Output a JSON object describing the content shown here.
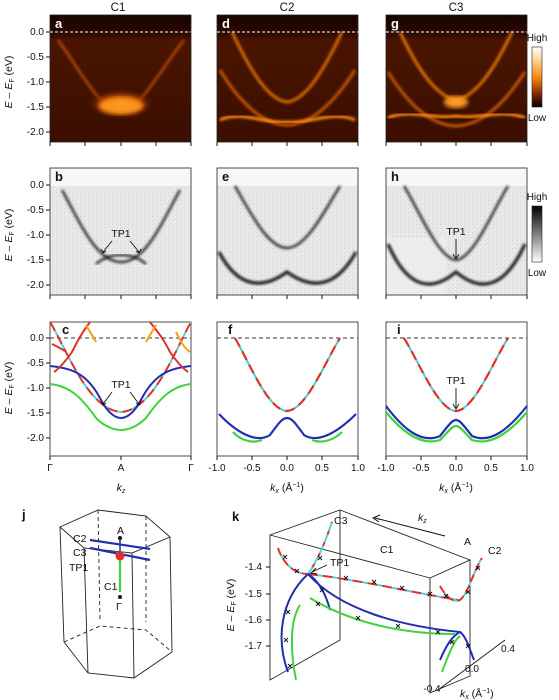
{
  "columns": [
    "C1",
    "C2",
    "C3"
  ],
  "panel_letters": [
    "a",
    "d",
    "g",
    "b",
    "e",
    "h",
    "c",
    "f",
    "i",
    "j",
    "k"
  ],
  "colorbar": {
    "high": "High",
    "low": "Low"
  },
  "axis": {
    "energy_label": "E – E",
    "energy_sub": "F",
    "energy_unit": " (eV)",
    "y_ticks": [
      "0.0",
      "-0.5",
      "-1.0",
      "-1.5",
      "-2.0"
    ],
    "kz_ticks": [
      "Γ",
      "A",
      "Γ"
    ],
    "kz_label": "k",
    "kz_sub": "z",
    "kx_ticks": [
      "-1.0",
      "-0.5",
      "0.0",
      "0.5",
      "1.0"
    ],
    "kx_label": "k",
    "kx_sub": "x",
    "kx_unit": " (Å",
    "kx_unit_sup": "−1",
    "kx_unit_close": ")"
  },
  "annotations": {
    "tp1": "TP1"
  },
  "panel_j": {
    "labels": [
      "C2",
      "C3",
      "TP1",
      "A",
      "C1",
      "Γ"
    ]
  },
  "panel_k": {
    "labels": [
      "C3",
      "TP1",
      "C1",
      "C2",
      "A"
    ],
    "kz_label": "k",
    "kz_sub": "z",
    "z_ticks": [
      "-1.4",
      "-1.5",
      "-1.6",
      "-1.7"
    ],
    "x_ticks": [
      "-0.4",
      "0.0",
      "0.4"
    ],
    "energy_label": "E – E",
    "energy_sub": "F",
    "energy_unit": " (eV)",
    "kx_label": "k",
    "kx_sub": "x",
    "kx_unit": " (Å",
    "kx_unit_sup": "−1",
    "kx_unit_close": ")"
  },
  "colors": {
    "red": "#e0302a",
    "cyan": "#46d8e0",
    "blue": "#1f2fb0",
    "green": "#3fd23a",
    "orange": "#f2a21e",
    "arpes_hot": "#ff7a00"
  },
  "chart_data": {
    "type": "line",
    "ylim": [
      -2.25,
      0.15
    ],
    "kx_xlim": [
      -1.0,
      1.0
    ],
    "series_c": [
      {
        "name": "",
        "color": "red",
        "description_points": [
          [
            -1,
            0.08
          ],
          [
            -0.6,
            -0.5
          ],
          [
            0,
            -1.5
          ],
          [
            0.6,
            -0.5
          ],
          [
            1,
            0.08
          ]
        ]
      }
    ],
    "series_f": [
      {
        "name": "",
        "points": [
          [
            -0.7,
            0.0
          ],
          [
            -0.3,
            -1.2
          ],
          [
            0,
            -1.5
          ],
          [
            0.3,
            -1.2
          ],
          [
            0.7,
            0.0
          ]
        ]
      },
      {
        "name": "",
        "points": [
          [
            -1.0,
            -1.55
          ],
          [
            -0.55,
            -2.1
          ],
          [
            0,
            -1.65
          ],
          [
            0.55,
            -2.1
          ],
          [
            1.0,
            -1.55
          ]
        ]
      }
    ],
    "series_i": [
      {
        "name": "",
        "points": [
          [
            -0.7,
            0.0
          ],
          [
            -0.3,
            -1.2
          ],
          [
            0,
            -1.5
          ],
          [
            0.3,
            -1.2
          ],
          [
            0.7,
            0.0
          ]
        ]
      },
      {
        "name": "",
        "points": [
          [
            -1.0,
            -1.35
          ],
          [
            -0.55,
            -2.05
          ],
          [
            0,
            -1.65
          ],
          [
            0.55,
            -2.05
          ],
          [
            1.0,
            -1.35
          ]
        ]
      }
    ]
  }
}
